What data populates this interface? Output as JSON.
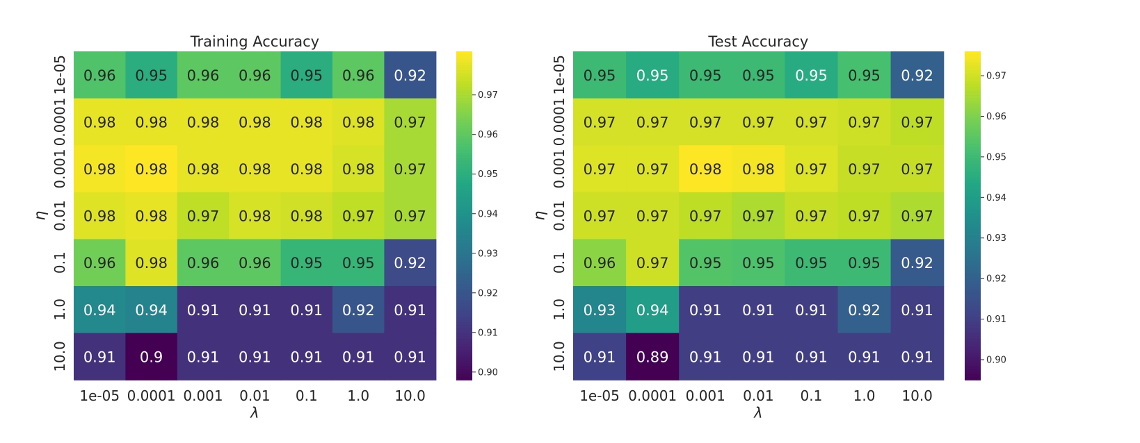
{
  "chart_data": [
    {
      "type": "heatmap",
      "title": "Training Accuracy",
      "xlabel": "λ",
      "ylabel": "η",
      "x_categories": [
        "1e-05",
        "0.0001",
        "0.001",
        "0.01",
        "0.1",
        "1.0",
        "10.0"
      ],
      "y_categories": [
        "1e-05",
        "0.0001",
        "0.001",
        "0.01",
        "0.1",
        "1.0",
        "10.0"
      ],
      "values": [
        [
          0.958,
          0.95,
          0.96,
          0.96,
          0.95,
          0.96,
          0.92
        ],
        [
          0.978,
          0.978,
          0.978,
          0.978,
          0.978,
          0.977,
          0.97
        ],
        [
          0.98,
          0.981,
          0.978,
          0.978,
          0.978,
          0.976,
          0.97
        ],
        [
          0.977,
          0.978,
          0.973,
          0.976,
          0.975,
          0.973,
          0.97
        ],
        [
          0.963,
          0.977,
          0.96,
          0.96,
          0.953,
          0.953,
          0.917
        ],
        [
          0.937,
          0.935,
          0.91,
          0.91,
          0.91,
          0.92,
          0.91
        ],
        [
          0.91,
          0.898,
          0.91,
          0.91,
          0.91,
          0.91,
          0.91
        ]
      ],
      "labels": [
        [
          "0.96",
          "0.95",
          "0.96",
          "0.96",
          "0.95",
          "0.96",
          "0.92"
        ],
        [
          "0.98",
          "0.98",
          "0.98",
          "0.98",
          "0.98",
          "0.98",
          "0.97"
        ],
        [
          "0.98",
          "0.98",
          "0.98",
          "0.98",
          "0.98",
          "0.98",
          "0.97"
        ],
        [
          "0.98",
          "0.98",
          "0.97",
          "0.98",
          "0.98",
          "0.97",
          "0.97"
        ],
        [
          "0.96",
          "0.98",
          "0.96",
          "0.96",
          "0.95",
          "0.95",
          "0.92"
        ],
        [
          "0.94",
          "0.94",
          "0.91",
          "0.91",
          "0.91",
          "0.92",
          "0.91"
        ],
        [
          "0.91",
          "0.9",
          "0.91",
          "0.91",
          "0.91",
          "0.91",
          "0.91"
        ]
      ],
      "colorbar": {
        "min": 0.898,
        "max": 0.981,
        "ticks": [
          "0.90",
          "0.91",
          "0.92",
          "0.93",
          "0.94",
          "0.95",
          "0.96",
          "0.97"
        ]
      },
      "colormap": "viridis"
    },
    {
      "type": "heatmap",
      "title": "Test Accuracy",
      "xlabel": "λ",
      "ylabel": "η",
      "x_categories": [
        "1e-05",
        "0.0001",
        "0.001",
        "0.01",
        "0.1",
        "1.0",
        "10.0"
      ],
      "y_categories": [
        "1e-05",
        "0.0001",
        "0.001",
        "0.01",
        "0.1",
        "1.0",
        "10.0"
      ],
      "values": [
        [
          0.95,
          0.945,
          0.95,
          0.95,
          0.945,
          0.952,
          0.92
        ],
        [
          0.971,
          0.971,
          0.971,
          0.971,
          0.971,
          0.97,
          0.968
        ],
        [
          0.972,
          0.972,
          0.976,
          0.975,
          0.972,
          0.969,
          0.969
        ],
        [
          0.97,
          0.97,
          0.968,
          0.966,
          0.969,
          0.968,
          0.966
        ],
        [
          0.962,
          0.97,
          0.954,
          0.953,
          0.95,
          0.95,
          0.918
        ],
        [
          0.932,
          0.94,
          0.91,
          0.91,
          0.91,
          0.92,
          0.91
        ],
        [
          0.911,
          0.895,
          0.91,
          0.91,
          0.91,
          0.91,
          0.91
        ]
      ],
      "labels": [
        [
          "0.95",
          "0.95",
          "0.95",
          "0.95",
          "0.95",
          "0.95",
          "0.92"
        ],
        [
          "0.97",
          "0.97",
          "0.97",
          "0.97",
          "0.97",
          "0.97",
          "0.97"
        ],
        [
          "0.97",
          "0.97",
          "0.98",
          "0.98",
          "0.97",
          "0.97",
          "0.97"
        ],
        [
          "0.97",
          "0.97",
          "0.97",
          "0.97",
          "0.97",
          "0.97",
          "0.97"
        ],
        [
          "0.96",
          "0.97",
          "0.95",
          "0.95",
          "0.95",
          "0.95",
          "0.92"
        ],
        [
          "0.93",
          "0.94",
          "0.91",
          "0.91",
          "0.91",
          "0.92",
          "0.91"
        ],
        [
          "0.91",
          "0.89",
          "0.91",
          "0.91",
          "0.91",
          "0.91",
          "0.91"
        ]
      ],
      "colorbar": {
        "min": 0.895,
        "max": 0.976,
        "ticks": [
          "0.90",
          "0.91",
          "0.92",
          "0.93",
          "0.94",
          "0.95",
          "0.96",
          "0.97"
        ]
      },
      "colormap": "viridis"
    }
  ]
}
